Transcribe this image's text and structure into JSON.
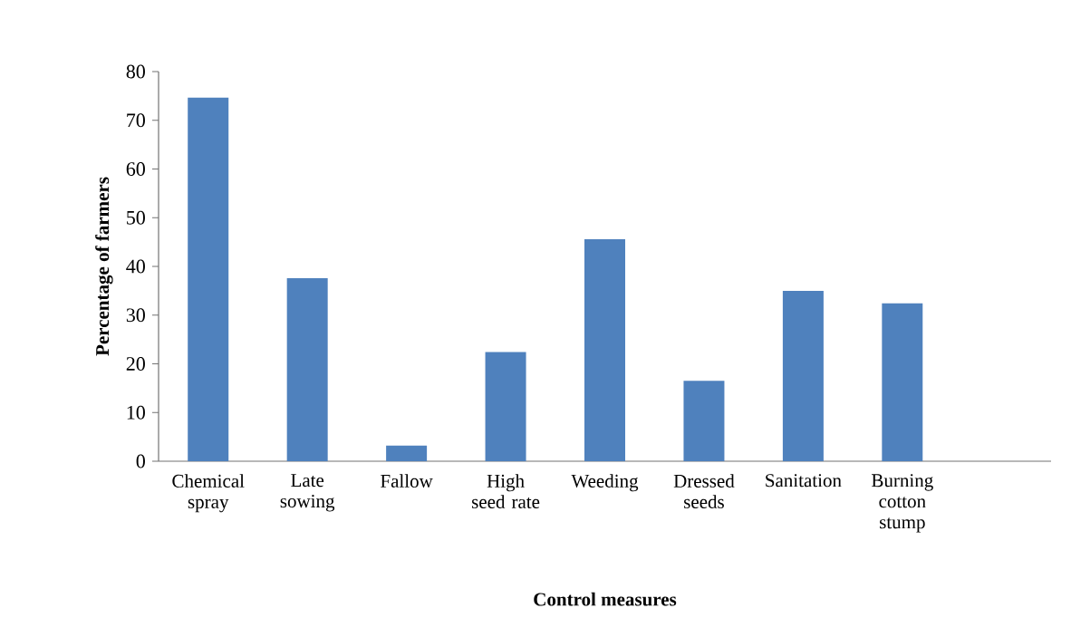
{
  "chart_data": {
    "type": "bar",
    "xlabel": "Control measures",
    "ylabel": "Percentage of farmers",
    "categories": [
      "Chemical spray",
      "Late sowing",
      "Fallow",
      "High seed rate",
      "Weeding",
      "Dressed seeds",
      "Sanitation",
      "Burning cotton stump",
      null
    ],
    "values": [
      74.7,
      37.6,
      3.2,
      22.4,
      45.6,
      16.5,
      35.0,
      32.4,
      null
    ],
    "color": "#4f81bd",
    "ylim": [
      0,
      80
    ],
    "yticks": [
      0,
      10,
      20,
      30,
      40,
      50,
      60,
      70,
      80
    ],
    "grid": false,
    "legend": false
  }
}
